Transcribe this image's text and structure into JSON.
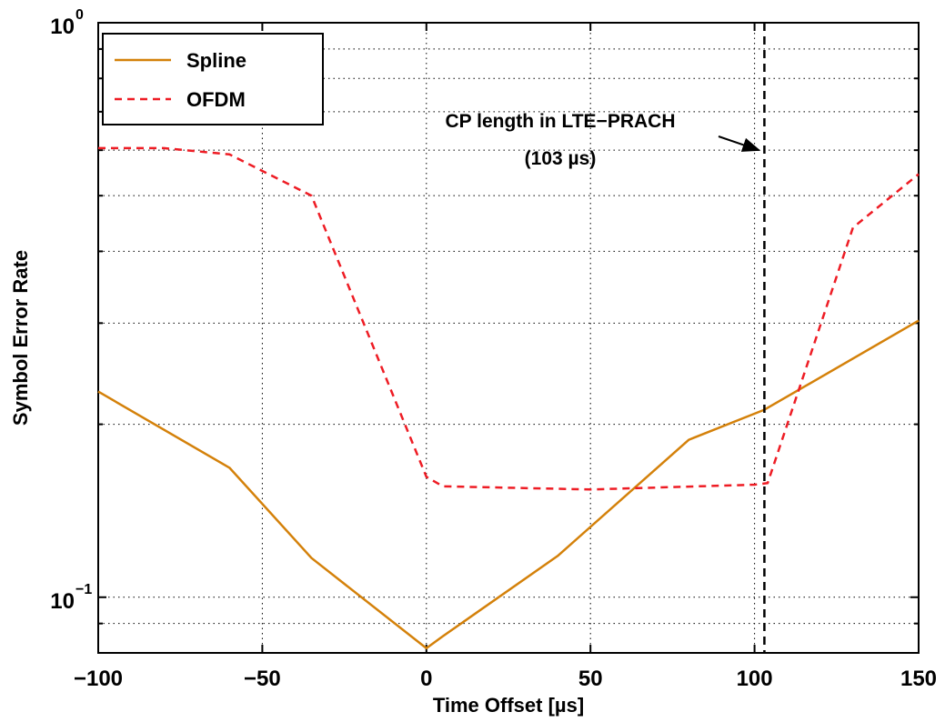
{
  "chart_data": {
    "type": "line",
    "title": "",
    "xlabel": "Time Offset [µs]",
    "ylabel": "Symbol Error Rate",
    "xlim": [
      -100,
      150
    ],
    "ylim": [
      0.08,
      1
    ],
    "yscale": "log",
    "grid": true,
    "legend_position": "top-left",
    "x_ticks": [
      "−100",
      "−50",
      "0",
      "50",
      "100",
      "150"
    ],
    "x_tick_values": [
      -100,
      -50,
      0,
      50,
      100,
      150
    ],
    "y_ticks": [
      {
        "value": 1,
        "base": "10",
        "exp": "0"
      },
      {
        "value": 0.1,
        "base": "10",
        "exp": "−1"
      }
    ],
    "series": [
      {
        "name": "Spline",
        "color": "#d4810a",
        "dash": "solid",
        "x": [
          -100,
          -60,
          -35,
          0,
          5,
          40,
          80,
          103,
          150
        ],
        "y": [
          0.228,
          0.168,
          0.117,
          0.0815,
          0.0855,
          0.118,
          0.188,
          0.212,
          0.303
        ]
      },
      {
        "name": "OFDM",
        "color": "#ee1c24",
        "dash": "dashed",
        "x": [
          -100,
          -80,
          -60,
          -35,
          0,
          5,
          50,
          100,
          104,
          130,
          150
        ],
        "y": [
          0.605,
          0.605,
          0.59,
          0.5,
          0.162,
          0.156,
          0.154,
          0.157,
          0.158,
          0.44,
          0.545
        ]
      }
    ],
    "vline": {
      "x": 103,
      "color": "#000000",
      "dash": "dashed"
    },
    "annotation": {
      "line1": "CP length in LTE−PRACH",
      "line2": "(103 µs)",
      "arrow_target": {
        "x": 103,
        "y": 0.6
      }
    }
  }
}
